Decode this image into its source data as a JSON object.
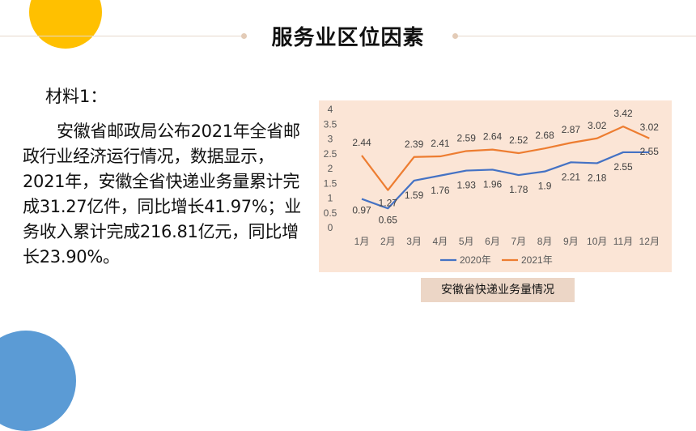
{
  "title": "服务业区位因素",
  "material": {
    "label": "材料1：",
    "text": "安徽省邮政局公布2021年全省邮政行业经济运行情况，数据显示，2021年，安徽全省快递业务量累计完成31.27亿件，同比增长41.97%；业务收入累计完成216.81亿元，同比增长23.90%。"
  },
  "caption": "安徽省快递业务量情况",
  "colors": {
    "accent_yellow": "#FFC000",
    "accent_blue": "#5B9BD5",
    "series_2020": "#4472C4",
    "series_2021": "#ED7D31",
    "panel_bg": "#FBE5D6"
  },
  "chart_data": {
    "type": "line",
    "categories": [
      "1月",
      "2月",
      "3月",
      "4月",
      "5月",
      "6月",
      "7月",
      "8月",
      "9月",
      "10月",
      "11月",
      "12月"
    ],
    "series": [
      {
        "name": "2020年",
        "color": "#4472C4",
        "values": [
          0.97,
          0.65,
          1.59,
          1.76,
          1.93,
          1.96,
          1.78,
          1.9,
          2.21,
          2.18,
          2.55,
          2.55
        ]
      },
      {
        "name": "2021年",
        "color": "#ED7D31",
        "values": [
          2.44,
          1.27,
          2.39,
          2.41,
          2.59,
          2.64,
          2.52,
          2.68,
          2.87,
          3.02,
          3.42,
          3.02
        ]
      }
    ],
    "ylim": [
      0,
      4
    ],
    "yticks": [
      "0",
      "0.5",
      "1",
      "1.5",
      "2",
      "2.5",
      "3",
      "3.5",
      "4"
    ],
    "grid": false,
    "legend_position": "bottom"
  }
}
